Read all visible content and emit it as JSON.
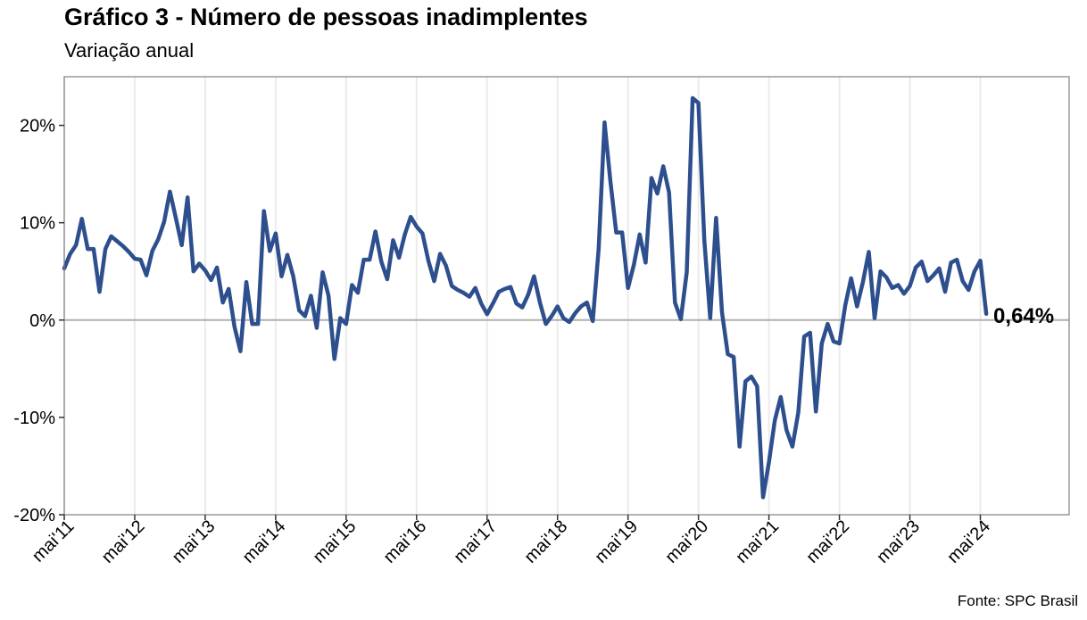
{
  "header": {
    "title": "Gráfico 3 - Número de pessoas inadimplentes",
    "subtitle": "Variação anual"
  },
  "footer": {
    "source": "Fonte: SPC Brasil"
  },
  "colors": {
    "line": "#2E4F8E",
    "zero_line": "#B0B0B0",
    "grid": "#EBEBEB",
    "frame": "#7F7F7F"
  },
  "chart_data": {
    "type": "line",
    "title": "Gráfico 3 - Número de pessoas inadimplentes",
    "subtitle": "Variação anual",
    "xlabel": "",
    "ylabel": "",
    "ylim": [
      -20,
      25
    ],
    "y_ticks": [
      -20,
      -10,
      0,
      10,
      20
    ],
    "y_tick_labels": [
      "-20%",
      "-10%",
      "0%",
      "10%",
      "20%"
    ],
    "x_tick_labels": [
      "mai'11",
      "mai'12",
      "mai'13",
      "mai'14",
      "mai'15",
      "mai'16",
      "mai'17",
      "mai'18",
      "mai'19",
      "mai'20",
      "mai'21",
      "mai'22",
      "mai'23",
      "mai'24"
    ],
    "x_start": "2011-05",
    "x_end": "2024-05",
    "grid": "vertical",
    "end_label": "0,64%",
    "series": [
      {
        "values": [
          5.3,
          6.8,
          7.7,
          10.4,
          7.3,
          7.3,
          2.9,
          7.3,
          8.6,
          8.1,
          7.6,
          7.0,
          6.3,
          6.2,
          4.6,
          7.1,
          8.3,
          10.1,
          13.2,
          10.5,
          7.7,
          12.6,
          5.0,
          5.8,
          5.1,
          4.1,
          5.4,
          1.8,
          3.2,
          -0.7,
          -3.2,
          3.9,
          -0.4,
          -0.4,
          11.2,
          7.1,
          8.9,
          4.5,
          6.7,
          4.5,
          1.0,
          0.4,
          2.5,
          -0.8,
          4.9,
          2.5,
          -4.0,
          0.2,
          -0.4,
          3.6,
          2.8,
          6.2,
          6.2,
          9.1,
          6.0,
          4.2,
          8.2,
          6.4,
          8.8,
          10.6,
          9.6,
          8.9,
          6.1,
          4.0,
          6.8,
          5.6,
          3.5,
          3.1,
          2.8,
          2.4,
          3.3,
          1.7,
          0.6,
          1.7,
          2.9,
          3.2,
          3.4,
          1.7,
          1.3,
          2.6,
          4.5,
          1.8,
          -0.4,
          0.4,
          1.4,
          0.2,
          -0.2,
          0.7,
          1.4,
          1.8,
          -0.1,
          7.3,
          20.3,
          14.3,
          9.0,
          9.0,
          3.3,
          5.7,
          8.8,
          5.9,
          14.6,
          13.0,
          15.8,
          13.1,
          1.8,
          0.1,
          4.9,
          22.8,
          22.3,
          8.2,
          0.2,
          10.5,
          0.8,
          -3.5,
          -3.8,
          -13.0,
          -6.3,
          -5.8,
          -6.8,
          -18.2,
          -14.6,
          -10.3,
          -7.9,
          -11.3,
          -13.0,
          -9.5,
          -1.7,
          -1.3,
          -9.4,
          -2.4,
          -0.4,
          -2.2,
          -2.4,
          1.5,
          4.3,
          1.4,
          3.9,
          7.0,
          0.2,
          5.0,
          4.4,
          3.3,
          3.6,
          2.7,
          3.5,
          5.4,
          6.0,
          4.0,
          4.6,
          5.3,
          2.9,
          5.9,
          6.2,
          4.0,
          3.1,
          5.0,
          6.1,
          0.64
        ]
      }
    ]
  }
}
